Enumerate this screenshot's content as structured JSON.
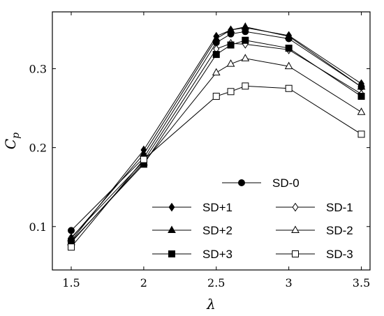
{
  "chart_data": {
    "type": "line",
    "xlabel": "λ",
    "ylabel": "C",
    "ylabel_sub": "p",
    "xlim": [
      1.37,
      3.56
    ],
    "ylim": [
      0.045,
      0.372
    ],
    "xticks": [
      {
        "value": 1.5,
        "label": "1.5"
      },
      {
        "value": 2,
        "label": "2"
      },
      {
        "value": 2.5,
        "label": "2.5"
      },
      {
        "value": 3,
        "label": "3"
      },
      {
        "value": 3.5,
        "label": "3.5"
      }
    ],
    "yticks": [
      {
        "value": 0.1,
        "label": "0.1"
      },
      {
        "value": 0.2,
        "label": "0.2"
      },
      {
        "value": 0.3,
        "label": "0.3"
      }
    ],
    "grid": false,
    "legend_position": "bottom-right",
    "series": [
      {
        "name": "SD-0",
        "marker": "circle",
        "filled": true,
        "x": [
          1.5,
          2,
          2.5,
          2.6,
          2.7,
          3,
          3.5
        ],
        "y": [
          0.095,
          0.187,
          0.333,
          0.344,
          0.347,
          0.338,
          0.277
        ]
      },
      {
        "name": "SD+1",
        "marker": "diamond",
        "filled": true,
        "x": [
          1.5,
          2,
          2.5,
          2.6,
          2.7,
          3,
          3.5
        ],
        "y": [
          0.082,
          0.197,
          0.341,
          0.349,
          0.352,
          0.342,
          0.281
        ]
      },
      {
        "name": "SD-1",
        "marker": "diamond",
        "filled": false,
        "x": [
          1.5,
          2,
          2.5,
          2.6,
          2.7,
          3,
          3.5
        ],
        "y": [
          0.086,
          0.183,
          0.325,
          0.332,
          0.331,
          0.324,
          0.268
        ]
      },
      {
        "name": "SD+2",
        "marker": "triangle",
        "filled": true,
        "x": [
          1.5,
          2,
          2.5,
          2.6,
          2.7,
          3,
          3.5
        ],
        "y": [
          0.085,
          0.192,
          0.338,
          0.349,
          0.353,
          0.341,
          0.277
        ]
      },
      {
        "name": "SD-2",
        "marker": "triangle",
        "filled": false,
        "x": [
          1.5,
          2,
          2.5,
          2.6,
          2.7,
          3,
          3.5
        ],
        "y": [
          0.08,
          0.181,
          0.295,
          0.306,
          0.313,
          0.303,
          0.245
        ]
      },
      {
        "name": "SD+3",
        "marker": "square",
        "filled": true,
        "x": [
          1.5,
          2,
          2.5,
          2.6,
          2.7,
          3,
          3.5
        ],
        "y": [
          0.081,
          0.179,
          0.318,
          0.33,
          0.336,
          0.326,
          0.265
        ]
      },
      {
        "name": "SD-3",
        "marker": "square",
        "filled": false,
        "x": [
          1.5,
          2,
          2.5,
          2.6,
          2.7,
          3,
          3.5
        ],
        "y": [
          0.074,
          0.185,
          0.265,
          0.271,
          0.278,
          0.275,
          0.217
        ]
      }
    ],
    "legend_rows": [
      [
        "SD-0"
      ],
      [
        "SD+1",
        "SD-1"
      ],
      [
        "SD+2",
        "SD-2"
      ],
      [
        "SD+3",
        "SD-3"
      ]
    ]
  }
}
